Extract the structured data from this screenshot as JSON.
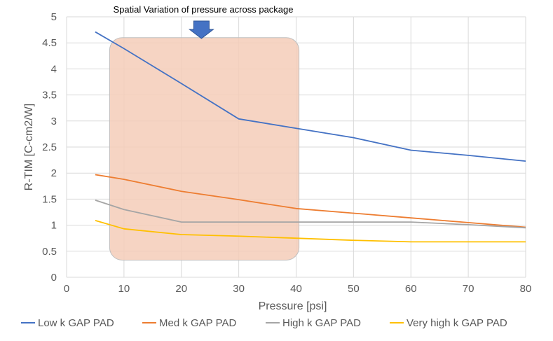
{
  "chart_data": {
    "type": "line",
    "title": "",
    "xlabel": "Pressure [psi]",
    "ylabel": "R-TIM [C-cm2/W]",
    "xlim": [
      0,
      80
    ],
    "ylim": [
      0,
      5
    ],
    "xticks": [
      "0",
      "10",
      "20",
      "30",
      "40",
      "50",
      "60",
      "70",
      "80"
    ],
    "yticks": [
      "0",
      "0.5",
      "1",
      "1.5",
      "2",
      "2.5",
      "3",
      "3.5",
      "4",
      "4.5",
      "5"
    ],
    "grid": true,
    "legend_position": "bottom",
    "annotation": {
      "text": "Spatial  Variation of pressure across package",
      "arrow_at_x": 23.5,
      "region_x": [
        7.5,
        40.5
      ],
      "region_y": [
        0.33,
        4.6
      ],
      "region_color": "#f4cdb8",
      "arrow_color": "#4472c4"
    },
    "series": [
      {
        "name": "Low k  GAP PAD",
        "color": "#4472c4",
        "x": [
          5,
          10,
          20,
          30,
          40,
          50,
          60,
          70,
          80
        ],
        "y": [
          4.71,
          4.39,
          3.72,
          3.04,
          2.86,
          2.68,
          2.44,
          2.34,
          2.23
        ]
      },
      {
        "name": "Med k  GAP PAD",
        "color": "#ed7d31",
        "x": [
          5,
          10,
          20,
          30,
          40,
          50,
          60,
          70,
          80
        ],
        "y": [
          1.97,
          1.88,
          1.65,
          1.49,
          1.32,
          1.23,
          1.14,
          1.05,
          0.96
        ]
      },
      {
        "name": "High k  GAP PAD",
        "color": "#a5a5a5",
        "x": [
          5,
          10,
          20,
          30,
          40,
          50,
          60,
          70,
          80
        ],
        "y": [
          1.48,
          1.3,
          1.06,
          1.06,
          1.06,
          1.06,
          1.06,
          1.01,
          0.95
        ]
      },
      {
        "name": "Very high k  GAP PAD",
        "color": "#ffc000",
        "x": [
          5,
          10,
          20,
          30,
          40,
          50,
          60,
          70,
          80
        ],
        "y": [
          1.09,
          0.93,
          0.82,
          0.79,
          0.75,
          0.71,
          0.68,
          0.68,
          0.68
        ]
      }
    ]
  }
}
